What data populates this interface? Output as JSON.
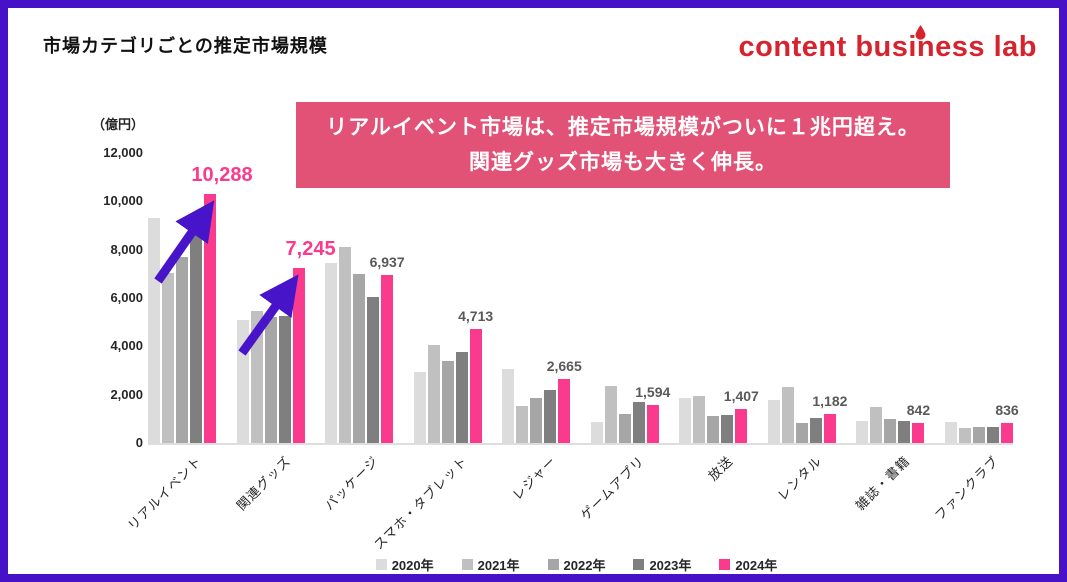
{
  "page": {
    "title": "市場カテゴリごとの推定市場規模",
    "border_color": "#4711c8"
  },
  "logo": {
    "text": "content business lab",
    "color": "#d6232e"
  },
  "banner": {
    "line1": "リアルイベント市場は、推定市場規模がついに１兆円超え。",
    "line2": "関連グッズ市場も大きく伸長。",
    "bg_color": "#e25276"
  },
  "chart_data": {
    "type": "bar",
    "title": "市場カテゴリごとの推定市場規模",
    "unit_label": "（億円）",
    "categories": [
      "リアルイベント",
      "関連グッズ",
      "パッケージ",
      "スマホ・タブレット",
      "レジャー",
      "ゲームアプリ",
      "放送",
      "レンタル",
      "雑誌・書籍",
      "ファンクラブ"
    ],
    "series": [
      {
        "name": "2020年",
        "color": "#dcdcdc",
        "values": [
          9300,
          5100,
          7450,
          2950,
          3050,
          870,
          1870,
          1780,
          900,
          870
        ]
      },
      {
        "name": "2021年",
        "color": "#c0c0c0",
        "values": [
          7050,
          5450,
          8100,
          4050,
          1530,
          2350,
          1950,
          2320,
          1500,
          640
        ]
      },
      {
        "name": "2022年",
        "color": "#a6a6a6",
        "values": [
          7700,
          5200,
          7000,
          3400,
          1850,
          1200,
          1100,
          830,
          1000,
          680
        ]
      },
      {
        "name": "2023年",
        "color": "#7f7f7f",
        "values": [
          8850,
          5250,
          6050,
          3750,
          2200,
          1700,
          1150,
          1050,
          900,
          680
        ]
      },
      {
        "name": "2024年",
        "color": "#f93a8d",
        "values": [
          10288,
          7245,
          6937,
          4713,
          2665,
          1594,
          1407,
          1182,
          842,
          836
        ]
      }
    ],
    "value_labels_2024": [
      "10,288",
      "7,245",
      "6,937",
      "4,713",
      "2,665",
      "1,594",
      "1,407",
      "1,182",
      "842",
      "836"
    ],
    "highlight_label_indexes": [
      0,
      1
    ],
    "label_color_highlight": "#f93a8d",
    "label_color_normal": "#595959",
    "ylim": [
      0,
      12000
    ],
    "yticks": [
      "12,000",
      "10,000",
      "8,000",
      "6,000",
      "4,000",
      "2,000",
      "0"
    ],
    "grid": false,
    "legend_position": "bottom",
    "annotations": [
      "リアルイベントへの上昇矢印",
      "関連グッズへの上昇矢印"
    ],
    "annotation_arrow_color": "#4714c9"
  }
}
